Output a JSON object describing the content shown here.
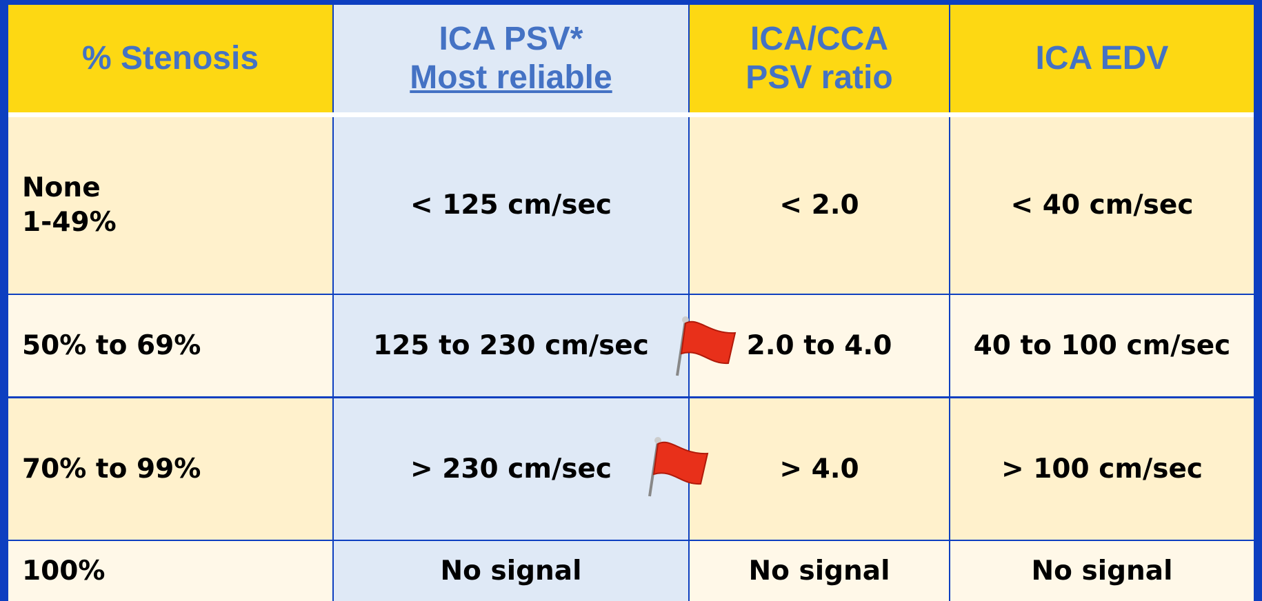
{
  "table": {
    "header": [
      [
        "% Stenosis"
      ],
      [
        "ICA PSV*",
        "Most reliable"
      ],
      [
        "ICA/CCA",
        "PSV ratio"
      ],
      [
        "ICA EDV"
      ]
    ],
    "rows": [
      [
        [
          "None",
          "1-49%"
        ],
        "< 125 cm/sec",
        "< 2.0",
        "< 40 cm/sec"
      ],
      [
        "50% to 69%",
        "125 to 230 cm/sec",
        "2.0 to 4.0",
        "40 to 100 cm/sec"
      ],
      [
        "70% to 99%",
        "> 230 cm/sec",
        "> 4.0",
        "> 100 cm/sec"
      ],
      [
        "100%",
        "No signal",
        "No signal",
        "No signal"
      ]
    ]
  }
}
